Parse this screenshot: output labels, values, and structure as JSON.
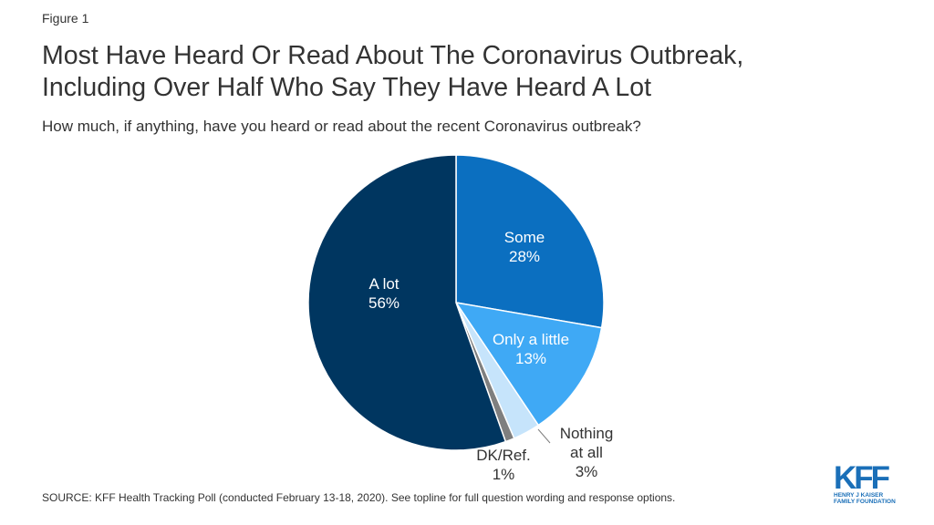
{
  "figure_label": "Figure 1",
  "title_line1": "Most Have Heard Or Read About The Coronavirus Outbreak,",
  "title_line2": "Including Over Half Who Say They Have Heard A Lot",
  "subtitle": "How much, if anything, have you heard or read about the recent Coronavirus outbreak?",
  "source": "SOURCE: KFF Health Tracking Poll (conducted February 13-18, 2020). See topline for full question wording and response options.",
  "logo": {
    "mark": "KFF",
    "line1": "HENRY J KAISER",
    "line2": "FAMILY FOUNDATION"
  },
  "chart_data": {
    "type": "pie",
    "title": "",
    "start_angle": "12 o'clock, clockwise",
    "slices": [
      {
        "label": [
          "Some"
        ],
        "value_label": "28%",
        "value": 28,
        "color": "#0b6fc0"
      },
      {
        "label": [
          "Only a little"
        ],
        "value_label": "13%",
        "value": 13,
        "color": "#3fa9f5"
      },
      {
        "label": [
          "Nothing",
          "at all"
        ],
        "value_label": "3%",
        "value": 3,
        "color": "#c6e4fb"
      },
      {
        "label": [
          "DK/Ref."
        ],
        "value_label": "1%",
        "value": 1,
        "color": "#7f7f7f"
      },
      {
        "label": [
          "A lot"
        ],
        "value_label": "56%",
        "value": 56,
        "color": "#003660"
      }
    ]
  }
}
